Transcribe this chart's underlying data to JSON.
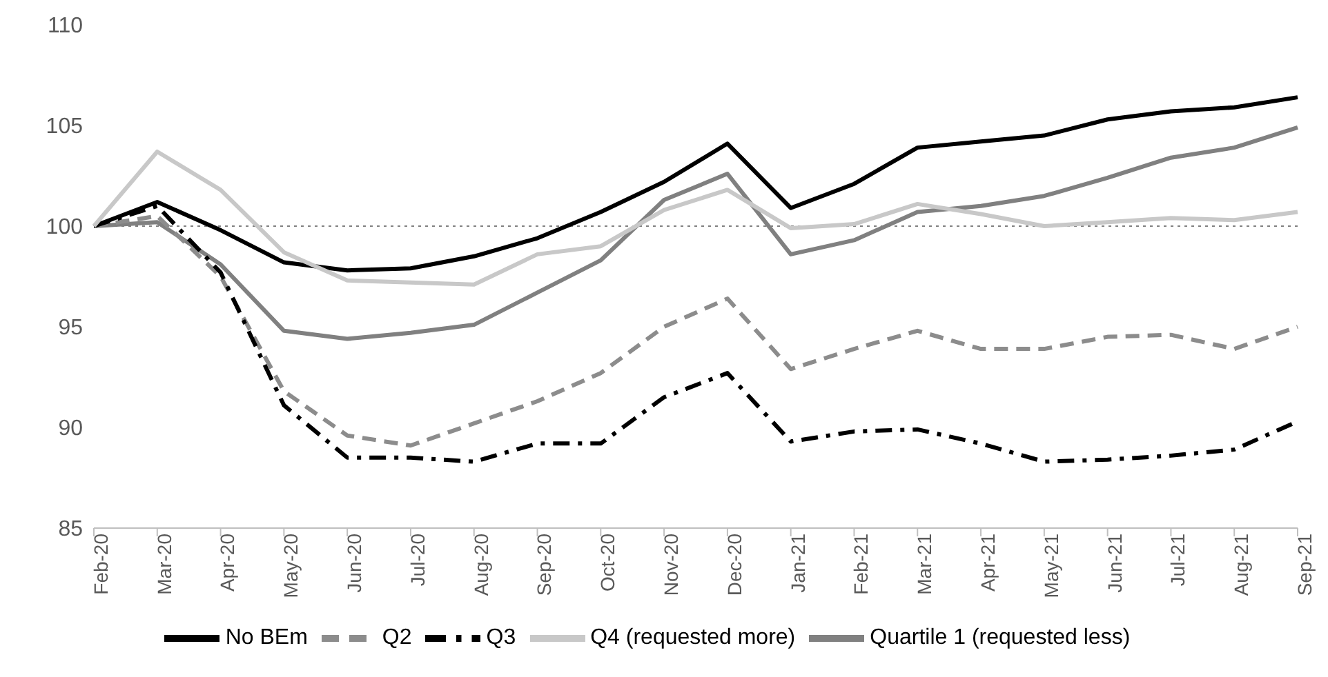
{
  "chart_data": {
    "type": "line",
    "categories": [
      "Feb-20",
      "Mar-20",
      "Apr-20",
      "May-20",
      "Jun-20",
      "Jul-20",
      "Aug-20",
      "Sep-20",
      "Oct-20",
      "Nov-20",
      "Dec-20",
      "Jan-21",
      "Feb-21",
      "Mar-21",
      "Apr-21",
      "May-21",
      "Jun-21",
      "Jul-21",
      "Aug-21",
      "Sep-21"
    ],
    "series": [
      {
        "name": "No BEm",
        "color": "#000000",
        "line_style": "solid",
        "values": [
          100,
          101.2,
          99.8,
          98.2,
          97.8,
          97.9,
          98.5,
          99.4,
          100.7,
          102.2,
          104.1,
          100.9,
          102.1,
          103.9,
          104.2,
          104.5,
          105.3,
          105.7,
          105.9,
          106.4
        ]
      },
      {
        "name": "Quartile 1 (requested less)",
        "color": "#808080",
        "line_style": "solid",
        "values": [
          100,
          100.2,
          98.1,
          94.8,
          94.4,
          94.7,
          95.1,
          96.7,
          98.3,
          101.3,
          102.6,
          98.6,
          99.3,
          100.7,
          101.0,
          101.5,
          102.4,
          103.4,
          103.9,
          104.9
        ]
      },
      {
        "name": "Q2",
        "color": "#8c8c8c",
        "line_style": "dashed",
        "values": [
          100,
          100.5,
          97.5,
          91.8,
          89.6,
          89.1,
          90.2,
          91.3,
          92.7,
          95.0,
          96.4,
          92.9,
          93.9,
          94.8,
          93.9,
          93.9,
          94.5,
          94.6,
          93.9,
          95.0
        ]
      },
      {
        "name": "Q3",
        "color": "#000000",
        "line_style": "dashdot",
        "values": [
          100,
          101,
          97.7,
          91.1,
          88.5,
          88.5,
          88.3,
          89.2,
          89.2,
          91.5,
          92.7,
          89.3,
          89.8,
          89.9,
          89.2,
          88.3,
          88.4,
          88.6,
          88.9,
          90.3
        ]
      },
      {
        "name": "Q4 (requested more)",
        "color": "#c8c8c8",
        "line_style": "solid",
        "values": [
          100,
          103.7,
          101.8,
          98.7,
          97.3,
          97.2,
          97.1,
          98.6,
          99.0,
          100.8,
          101.8,
          99.9,
          100.1,
          101.1,
          100.6,
          100.0,
          100.2,
          100.4,
          100.3,
          100.7
        ]
      }
    ],
    "ylim": [
      85,
      110
    ],
    "yticks": [
      85,
      90,
      95,
      100,
      105,
      110
    ],
    "ref_lines": [
      {
        "axis": "y",
        "value": 100,
        "color": "#808080",
        "line_style": "dotted"
      }
    ],
    "grid": false,
    "legend": "bottom",
    "marker": "none"
  }
}
